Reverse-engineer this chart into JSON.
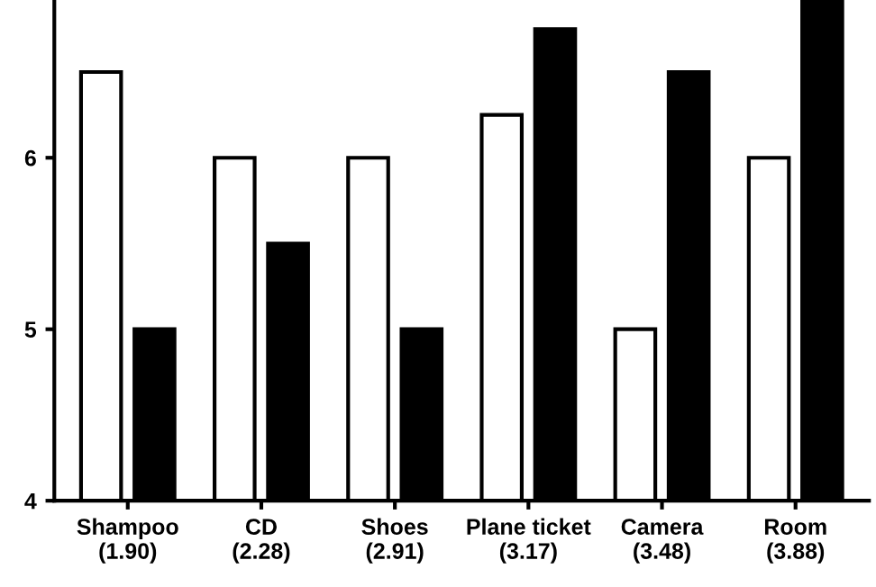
{
  "chart_data": {
    "type": "bar",
    "categories": [
      "Shampoo\n(1.90)",
      "CD\n(2.28)",
      "Shoes\n(2.91)",
      "Plane ticket\n(3.17)",
      "Camera\n(3.48)",
      "Room\n(3.88)"
    ],
    "series": [
      {
        "color": "#ffffff",
        "values": [
          6.5,
          6.0,
          6.0,
          6.25,
          5.0,
          6.0
        ]
      },
      {
        "color": "#000000",
        "values": [
          5.0,
          5.5,
          5.0,
          6.75,
          6.5,
          6.92
        ]
      }
    ],
    "ylim": [
      4,
      6.92
    ],
    "yticks": [
      4,
      5,
      6
    ],
    "grid": false,
    "legend": false
  }
}
